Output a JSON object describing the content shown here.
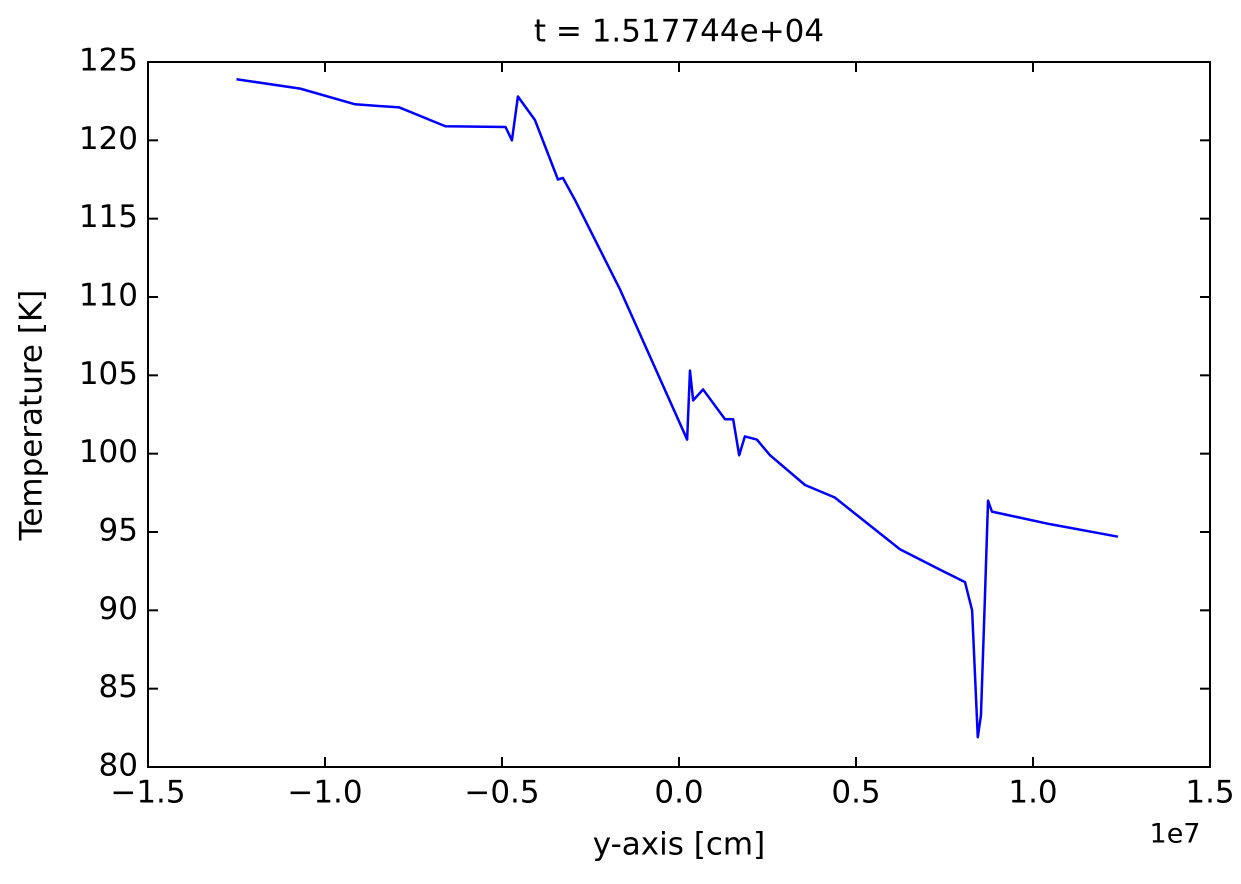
{
  "chart_data": {
    "type": "line",
    "title": "t =  1.517744e+04",
    "x_label": "y-axis [cm]",
    "y_label": "Temperature [K]",
    "x_offset_label": "1e7",
    "xlim": [
      -1.5,
      1.5
    ],
    "ylim": [
      80,
      125
    ],
    "xticks": [
      {
        "value": -1.5,
        "label": "−1.5"
      },
      {
        "value": -1.0,
        "label": "−1.0"
      },
      {
        "value": -0.5,
        "label": "−0.5"
      },
      {
        "value": 0,
        "label": "0.0"
      },
      0.5,
      {
        "value": 1.0,
        "label": "1.0"
      },
      1.5
    ],
    "yticks": [
      80,
      85,
      90,
      95,
      100,
      105,
      110,
      115,
      120,
      125
    ],
    "grid": false,
    "series": [
      {
        "color": "#0000ff",
        "x": [
          -1.25,
          -1.07,
          -0.915,
          -0.79,
          -0.66,
          -0.49,
          -0.472,
          -0.455,
          -0.407,
          -0.342,
          -0.328,
          -0.294,
          -0.167,
          0.023,
          0.031,
          0.04,
          0.068,
          0.13,
          0.153,
          0.17,
          0.186,
          0.22,
          0.257,
          0.356,
          0.44,
          0.624,
          0.737,
          0.808,
          0.828,
          0.844,
          0.853,
          0.864,
          0.873,
          0.884,
          1.048,
          1.24
        ],
        "values": [
          123.9,
          123.3,
          122.3,
          122.1,
          120.9,
          120.85,
          120.0,
          122.8,
          121.3,
          117.5,
          117.6,
          116.2,
          110.5,
          100.9,
          105.3,
          103.4,
          104.1,
          102.2,
          102.2,
          99.9,
          101.1,
          100.9,
          99.9,
          98.0,
          97.2,
          93.9,
          92.6,
          91.8,
          90.0,
          81.9,
          83.3,
          90.7,
          97.0,
          96.3,
          95.5,
          94.7
        ]
      }
    ]
  }
}
